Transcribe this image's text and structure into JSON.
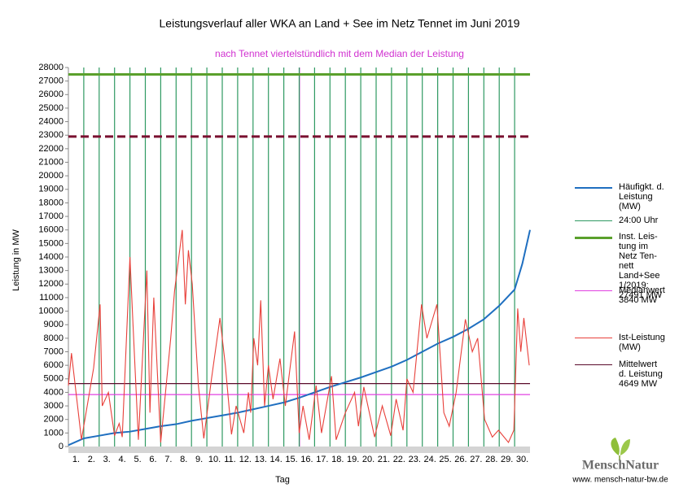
{
  "chart_data": {
    "type": "line",
    "title": "Leistungsverlauf aller WKA an Land + See im Netz Tennet im Juni 2019",
    "subtitle": "nach Tennet viertelstündlich mit dem Median der Leistung",
    "y_label": "Leistung in MW",
    "x_label": "Tag",
    "xlim": [
      0,
      30
    ],
    "ylim": [
      0,
      28000
    ],
    "yticks": [
      0,
      1000,
      2000,
      3000,
      4000,
      5000,
      6000,
      7000,
      8000,
      9000,
      10000,
      11000,
      12000,
      13000,
      14000,
      15000,
      16000,
      17000,
      18000,
      19000,
      20000,
      21000,
      22000,
      23000,
      24000,
      25000,
      26000,
      27000,
      28000
    ],
    "xticks": [
      {
        "value": 0.5,
        "label": "1."
      },
      {
        "value": 1.5,
        "label": "2."
      },
      {
        "value": 2.5,
        "label": "3."
      },
      {
        "value": 3.5,
        "label": "4."
      },
      {
        "value": 4.5,
        "label": "5."
      },
      {
        "value": 5.5,
        "label": "6."
      },
      {
        "value": 6.5,
        "label": "7."
      },
      {
        "value": 7.5,
        "label": "8."
      },
      {
        "value": 8.5,
        "label": "9."
      },
      {
        "value": 9.5,
        "label": "10."
      },
      {
        "value": 10.5,
        "label": "11."
      },
      {
        "value": 11.5,
        "label": "12."
      },
      {
        "value": 12.5,
        "label": "13."
      },
      {
        "value": 13.5,
        "label": "14."
      },
      {
        "value": 14.5,
        "label": "15."
      },
      {
        "value": 15.5,
        "label": "16."
      },
      {
        "value": 16.5,
        "label": "17."
      },
      {
        "value": 17.5,
        "label": "18."
      },
      {
        "value": 18.5,
        "label": "19."
      },
      {
        "value": 19.5,
        "label": "20."
      },
      {
        "value": 20.5,
        "label": "21."
      },
      {
        "value": 21.5,
        "label": "22."
      },
      {
        "value": 22.5,
        "label": "23."
      },
      {
        "value": 23.5,
        "label": "24."
      },
      {
        "value": 24.5,
        "label": "25."
      },
      {
        "value": 25.5,
        "label": "26."
      },
      {
        "value": 26.5,
        "label": "27."
      },
      {
        "value": 27.5,
        "label": "28."
      },
      {
        "value": 28.5,
        "label": "29."
      },
      {
        "value": 29.5,
        "label": "30."
      }
    ],
    "day_lines": {
      "name": "24:00 Uhr",
      "color": "#2f9a62"
    },
    "series": [
      {
        "name": "Häufigkt. d.\nLeistung\n(MW)",
        "color": "#1f6fc0",
        "x": [
          0,
          1,
          2,
          3,
          4,
          5,
          6,
          7,
          8,
          9,
          10,
          11,
          12,
          13,
          14,
          15,
          16,
          17,
          18,
          19,
          20,
          21,
          22,
          23,
          24,
          25,
          26,
          27,
          28,
          29,
          29.5,
          30
        ],
        "values": [
          100,
          600,
          800,
          1000,
          1100,
          1300,
          1500,
          1650,
          1900,
          2100,
          2300,
          2500,
          2750,
          3000,
          3250,
          3600,
          4000,
          4400,
          4750,
          5100,
          5500,
          5900,
          6400,
          7000,
          7600,
          8100,
          8700,
          9400,
          10400,
          11600,
          13500,
          16000
        ]
      },
      {
        "name": "Ist-Leistung\n(MW)",
        "color": "#e8403a",
        "x": [
          0,
          0.2,
          0.85,
          1.64,
          2.06,
          2.2,
          2.6,
          3,
          3.3,
          3.5,
          4.0,
          4.2,
          4.55,
          5.1,
          5.3,
          5.55,
          6.0,
          6.65,
          6.9,
          7.4,
          7.6,
          7.8,
          8.05,
          8.45,
          8.8,
          9.3,
          9.85,
          10.2,
          10.6,
          10.9,
          11.4,
          11.7,
          11.85,
          12.05,
          12.3,
          12.5,
          12.75,
          13,
          13.3,
          13.75,
          14.1,
          14.7,
          15,
          15.25,
          15.65,
          16.1,
          16.45,
          17.1,
          17.4,
          18,
          18.6,
          18.85,
          19.2,
          19.9,
          20.4,
          20.95,
          21.3,
          21.75,
          22,
          22.4,
          22.95,
          23.3,
          23.95,
          24.4,
          24.75,
          25.2,
          25.8,
          26.25,
          26.6,
          27.05,
          27.55,
          27.95,
          28.6,
          28.95,
          29.2,
          29.4,
          29.6,
          29.95
        ],
        "values": [
          4500,
          6900,
          500,
          5800,
          10500,
          3000,
          4000,
          800,
          1700,
          700,
          14000,
          9000,
          500,
          13000,
          2500,
          11000,
          300,
          8000,
          11500,
          16000,
          10500,
          14500,
          12000,
          4500,
          600,
          5000,
          9500,
          6000,
          900,
          3000,
          1000,
          4000,
          2500,
          8000,
          6000,
          10800,
          3000,
          6000,
          3500,
          6500,
          3000,
          8500,
          1000,
          3000,
          500,
          4500,
          1000,
          5200,
          500,
          2500,
          4000,
          1500,
          4400,
          700,
          3000,
          800,
          3500,
          1200,
          5000,
          4000,
          10500,
          8000,
          10500,
          2500,
          1500,
          4000,
          9400,
          7000,
          8000,
          2000,
          700,
          1200,
          300,
          1200,
          10200,
          7000,
          9500,
          6000
        ]
      }
    ],
    "reference_lines": [
      {
        "name": "Inst. Leis-\ntung im\nNetz Ten-\nnett\nLand+See\n1/2019:\n27491 MW",
        "color": "#5aa02c",
        "value": 27491
      },
      {
        "name": "Medianwert\n3840 MW",
        "color": "#e040e0",
        "value": 3840
      },
      {
        "name": "Mittelwert\nd. Leistung\n4649 MW",
        "color": "#5a0a2a",
        "value": 4649
      },
      {
        "color": "#7a1030",
        "value": 22900
      }
    ]
  },
  "logo": {
    "name": "MenschNatur",
    "url": "www. mensch-natur-bw.de"
  }
}
